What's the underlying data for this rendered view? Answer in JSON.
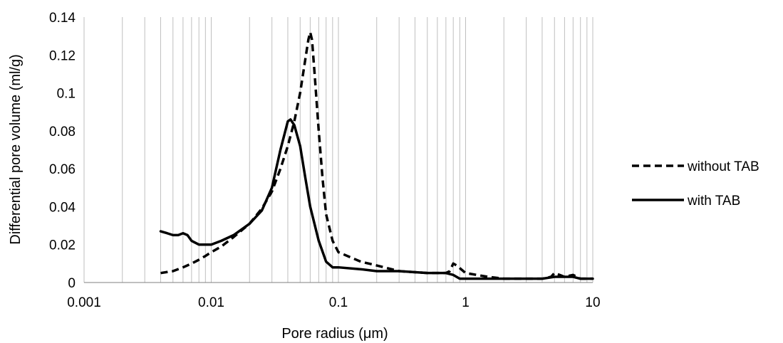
{
  "chart_data": {
    "type": "line",
    "x_scale": "log",
    "xlim": [
      0.001,
      10
    ],
    "ylim": [
      0,
      0.14
    ],
    "xlabel": "Pore radius (μm)",
    "ylabel": "Differential pore volume (ml/g)",
    "x_ticks": [
      {
        "value": 0.001,
        "label": "0.001"
      },
      {
        "value": 0.01,
        "label": "0.01"
      },
      {
        "value": 0.1,
        "label": "0.1"
      },
      {
        "value": 1,
        "label": "1"
      },
      {
        "value": 10,
        "label": "10"
      }
    ],
    "y_ticks": [
      {
        "value": 0,
        "label": "0"
      },
      {
        "value": 0.02,
        "label": "0.02"
      },
      {
        "value": 0.04,
        "label": "0.04"
      },
      {
        "value": 0.06,
        "label": "0.06"
      },
      {
        "value": 0.08,
        "label": "0.08"
      },
      {
        "value": 0.1,
        "label": "0.1"
      },
      {
        "value": 0.12,
        "label": "0.12"
      },
      {
        "value": 0.14,
        "label": "0.14"
      }
    ],
    "grid": "vertical minor log gridlines",
    "legend_position": "right",
    "series": [
      {
        "name": "without TAB",
        "style": "dashed",
        "color": "#000000",
        "points": [
          [
            0.004,
            0.005
          ],
          [
            0.005,
            0.006
          ],
          [
            0.006,
            0.008
          ],
          [
            0.007,
            0.01
          ],
          [
            0.008,
            0.012
          ],
          [
            0.009,
            0.014
          ],
          [
            0.01,
            0.016
          ],
          [
            0.012,
            0.019
          ],
          [
            0.015,
            0.024
          ],
          [
            0.02,
            0.031
          ],
          [
            0.025,
            0.039
          ],
          [
            0.03,
            0.048
          ],
          [
            0.035,
            0.06
          ],
          [
            0.04,
            0.072
          ],
          [
            0.045,
            0.085
          ],
          [
            0.05,
            0.1
          ],
          [
            0.055,
            0.118
          ],
          [
            0.058,
            0.128
          ],
          [
            0.06,
            0.132
          ],
          [
            0.062,
            0.128
          ],
          [
            0.065,
            0.11
          ],
          [
            0.07,
            0.08
          ],
          [
            0.075,
            0.055
          ],
          [
            0.08,
            0.036
          ],
          [
            0.09,
            0.022
          ],
          [
            0.1,
            0.016
          ],
          [
            0.15,
            0.011
          ],
          [
            0.2,
            0.009
          ],
          [
            0.3,
            0.006
          ],
          [
            0.5,
            0.005
          ],
          [
            0.7,
            0.005
          ],
          [
            0.75,
            0.006
          ],
          [
            0.8,
            0.01
          ],
          [
            0.85,
            0.009
          ],
          [
            1.0,
            0.005
          ],
          [
            1.5,
            0.003
          ],
          [
            2.0,
            0.002
          ],
          [
            3.0,
            0.002
          ],
          [
            4.0,
            0.002
          ],
          [
            4.7,
            0.003
          ],
          [
            5.0,
            0.005
          ],
          [
            5.5,
            0.004
          ],
          [
            6.0,
            0.003
          ],
          [
            7.0,
            0.004
          ],
          [
            7.5,
            0.003
          ],
          [
            8.0,
            0.002
          ],
          [
            10.0,
            0.002
          ]
        ]
      },
      {
        "name": "with TAB",
        "style": "solid",
        "color": "#000000",
        "points": [
          [
            0.004,
            0.027
          ],
          [
            0.0045,
            0.026
          ],
          [
            0.005,
            0.025
          ],
          [
            0.0055,
            0.025
          ],
          [
            0.006,
            0.026
          ],
          [
            0.0065,
            0.025
          ],
          [
            0.007,
            0.022
          ],
          [
            0.008,
            0.02
          ],
          [
            0.009,
            0.02
          ],
          [
            0.01,
            0.02
          ],
          [
            0.012,
            0.022
          ],
          [
            0.015,
            0.025
          ],
          [
            0.02,
            0.031
          ],
          [
            0.025,
            0.038
          ],
          [
            0.03,
            0.05
          ],
          [
            0.035,
            0.07
          ],
          [
            0.04,
            0.085
          ],
          [
            0.042,
            0.086
          ],
          [
            0.045,
            0.083
          ],
          [
            0.05,
            0.072
          ],
          [
            0.055,
            0.055
          ],
          [
            0.06,
            0.04
          ],
          [
            0.07,
            0.022
          ],
          [
            0.08,
            0.011
          ],
          [
            0.09,
            0.008
          ],
          [
            0.1,
            0.008
          ],
          [
            0.15,
            0.007
          ],
          [
            0.2,
            0.006
          ],
          [
            0.3,
            0.006
          ],
          [
            0.5,
            0.005
          ],
          [
            0.7,
            0.005
          ],
          [
            0.8,
            0.004
          ],
          [
            0.9,
            0.002
          ],
          [
            1.0,
            0.002
          ],
          [
            2.0,
            0.002
          ],
          [
            3.0,
            0.002
          ],
          [
            4.0,
            0.002
          ],
          [
            5.0,
            0.003
          ],
          [
            7.0,
            0.003
          ],
          [
            8.0,
            0.002
          ],
          [
            10.0,
            0.002
          ]
        ]
      }
    ]
  }
}
